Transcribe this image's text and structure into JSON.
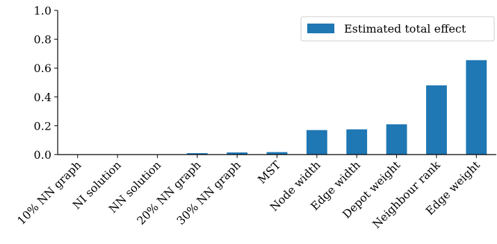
{
  "chart_data": {
    "type": "bar",
    "categories": [
      "10% NN graph",
      "NI solution",
      "NN solution",
      "20% NN graph",
      "30% NN graph",
      "MST",
      "Node width",
      "Edge width",
      "Depot weight",
      "Neighbour rank",
      "Edge weight"
    ],
    "series": [
      {
        "name": "Estimated total effect",
        "values": [
          0.0,
          0.0,
          0.0,
          0.01,
          0.015,
          0.017,
          0.17,
          0.175,
          0.21,
          0.48,
          0.655
        ],
        "color": "#1f77b4"
      }
    ],
    "title": "",
    "xlabel": "",
    "ylabel": "",
    "ylim": [
      0.0,
      1.0
    ],
    "yticks": [
      "0.0",
      "0.2",
      "0.4",
      "0.6",
      "0.8",
      "1.0"
    ],
    "grid": false,
    "legend_position": "top-right"
  }
}
